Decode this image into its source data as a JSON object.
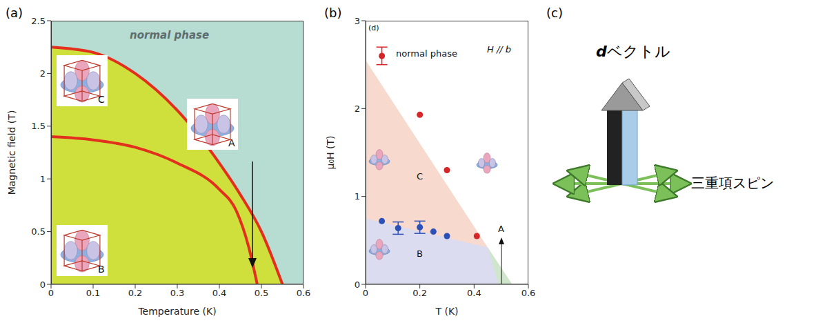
{
  "chart_data": [
    {
      "type": "line",
      "panel": "(a)",
      "x_label": "Temperature (K)",
      "y_label": "Magnetic field (T)",
      "xlim": [
        0,
        0.6
      ],
      "xticks": [
        0,
        0.1,
        0.2,
        0.3,
        0.4,
        0.5,
        0.6
      ],
      "ylim": [
        0,
        2.5
      ],
      "yticks": [
        0,
        0.5,
        1,
        1.5,
        2,
        2.5
      ],
      "annotations": [
        "normal phase",
        "A",
        "B",
        "C"
      ],
      "series": [
        {
          "type": "area",
          "color": "#cfe03c",
          "x": [
            0,
            0.1,
            0.2,
            0.3,
            0.4,
            0.45,
            0.5,
            0.55
          ],
          "values": [
            2.25,
            2.2,
            2.0,
            1.65,
            1.15,
            0.85,
            0.5,
            0
          ]
        },
        {
          "type": "line",
          "color": "#e3301e",
          "x": [
            0,
            0.1,
            0.2,
            0.3,
            0.4,
            0.45,
            0.5,
            0.55
          ],
          "values": [
            2.25,
            2.2,
            2.0,
            1.65,
            1.15,
            0.85,
            0.5,
            0
          ]
        },
        {
          "type": "line",
          "color": "#e3301e",
          "x": [
            0,
            0.1,
            0.2,
            0.3,
            0.4,
            0.44,
            0.47,
            0.49
          ],
          "values": [
            1.4,
            1.37,
            1.3,
            1.15,
            0.9,
            0.7,
            0.35,
            0
          ]
        }
      ]
    },
    {
      "type": "scatter",
      "panel": "(b)",
      "x_label": "T (K)",
      "y_label": "μ₀H (T)",
      "xlim": [
        0,
        0.6
      ],
      "xticks": [
        0,
        0.2,
        0.4,
        0.6
      ],
      "ylim": [
        0,
        3
      ],
      "yticks": [
        0,
        1,
        2,
        3
      ],
      "annotations": [
        "(d)",
        "normal phase",
        "H // b",
        "A",
        "B",
        "C"
      ],
      "series": [
        {
          "type": "area",
          "color": "#f8d9cd",
          "x": [
            0,
            0.45,
            0.54
          ],
          "values": [
            2.55,
            0.42,
            0
          ]
        },
        {
          "type": "area",
          "color": "#cfe6cc",
          "x": [
            0.45,
            0.54
          ],
          "values": [
            0.42,
            0
          ]
        },
        {
          "type": "area",
          "color": "#dcdcf0",
          "x": [
            0,
            0.45,
            0.49
          ],
          "values": [
            0.75,
            0.42,
            0
          ]
        },
        {
          "type": "scatter",
          "color": "#d62728",
          "x": [
            0.06,
            0.2,
            0.3,
            0.41
          ],
          "values": [
            2.6,
            1.93,
            1.3,
            0.55
          ],
          "error": [
            0.1,
            null,
            null,
            null
          ]
        },
        {
          "type": "scatter",
          "color": "#2b50b8",
          "x": [
            0.06,
            0.12,
            0.2,
            0.25,
            0.3
          ],
          "values": [
            0.72,
            0.64,
            0.65,
            0.6,
            0.55
          ],
          "error": [
            null,
            0.07,
            0.07,
            null,
            null
          ]
        }
      ]
    }
  ],
  "diagram": {
    "panel": "(c)",
    "arrow_label": "dベクトル",
    "spin_label": "三重項スピン"
  }
}
